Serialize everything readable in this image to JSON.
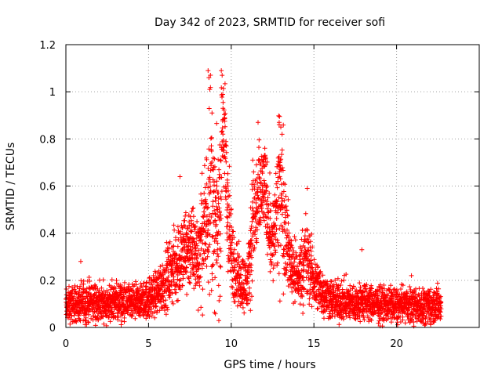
{
  "chart_data": {
    "type": "scatter",
    "title": "Day 342 of 2023, SRMTID for receiver sofi",
    "xlabel": "GPS time / hours",
    "ylabel": "SRMTID / TECUs",
    "xlim": [
      0,
      25
    ],
    "ylim": [
      0,
      1.2
    ],
    "xticks": [
      0,
      5,
      10,
      15,
      20
    ],
    "xtick_labels": [
      "0",
      "5",
      "10",
      "15",
      "20"
    ],
    "yticks": [
      0,
      0.2,
      0.4,
      0.6,
      0.8,
      1,
      1.2
    ],
    "ytick_labels": [
      "0",
      "0.2",
      "0.4",
      "0.6",
      "0.8",
      "1",
      "1.2"
    ],
    "grid": true,
    "marker": "+",
    "series": [
      {
        "name": "SRMTID",
        "color": "#ff0000",
        "x": [
          0.0,
          0.5,
          1.0,
          1.5,
          2.0,
          2.5,
          3.0,
          3.5,
          4.0,
          4.5,
          5.0,
          5.5,
          6.0,
          6.5,
          7.0,
          7.5,
          8.0,
          8.5,
          8.7,
          9.0,
          9.3,
          9.5,
          9.7,
          10.0,
          10.5,
          11.0,
          11.3,
          11.7,
          12.0,
          12.3,
          12.5,
          13.0,
          13.5,
          14.0,
          14.5,
          15.0,
          15.5,
          16.0,
          16.5,
          17.0,
          17.5,
          18.0,
          18.5,
          19.0,
          19.5,
          20.0,
          20.5,
          21.0,
          21.5,
          22.0,
          22.5,
          22.7
        ],
        "y": [
          0.09,
          0.1,
          0.1,
          0.11,
          0.1,
          0.1,
          0.11,
          0.1,
          0.1,
          0.11,
          0.12,
          0.15,
          0.2,
          0.25,
          0.3,
          0.35,
          0.3,
          0.45,
          0.7,
          0.4,
          0.45,
          0.9,
          0.6,
          0.3,
          0.2,
          0.18,
          0.45,
          0.55,
          0.6,
          0.45,
          0.35,
          0.6,
          0.3,
          0.2,
          0.3,
          0.2,
          0.15,
          0.12,
          0.11,
          0.11,
          0.1,
          0.11,
          0.1,
          0.1,
          0.1,
          0.09,
          0.1,
          0.09,
          0.09,
          0.09,
          0.1,
          0.09
        ],
        "spread": [
          0.06,
          0.06,
          0.07,
          0.07,
          0.07,
          0.07,
          0.07,
          0.07,
          0.06,
          0.06,
          0.07,
          0.08,
          0.1,
          0.12,
          0.15,
          0.15,
          0.15,
          0.25,
          0.4,
          0.25,
          0.3,
          0.2,
          0.3,
          0.15,
          0.1,
          0.1,
          0.2,
          0.2,
          0.15,
          0.15,
          0.15,
          0.3,
          0.12,
          0.1,
          0.15,
          0.1,
          0.08,
          0.07,
          0.07,
          0.07,
          0.06,
          0.07,
          0.06,
          0.06,
          0.06,
          0.06,
          0.06,
          0.06,
          0.06,
          0.06,
          0.07,
          0.05
        ],
        "points_per_hour": 160,
        "outliers": [
          [
            0.9,
            0.28
          ],
          [
            8.6,
            1.09
          ],
          [
            8.65,
            1.06
          ],
          [
            9.4,
            1.09
          ],
          [
            9.45,
            1.07
          ],
          [
            9.5,
            0.93
          ],
          [
            12.9,
            0.87
          ],
          [
            13.0,
            0.85
          ],
          [
            11.3,
            0.71
          ],
          [
            14.6,
            0.59
          ],
          [
            6.9,
            0.64
          ],
          [
            17.9,
            0.33
          ],
          [
            20.9,
            0.22
          ]
        ]
      }
    ]
  }
}
